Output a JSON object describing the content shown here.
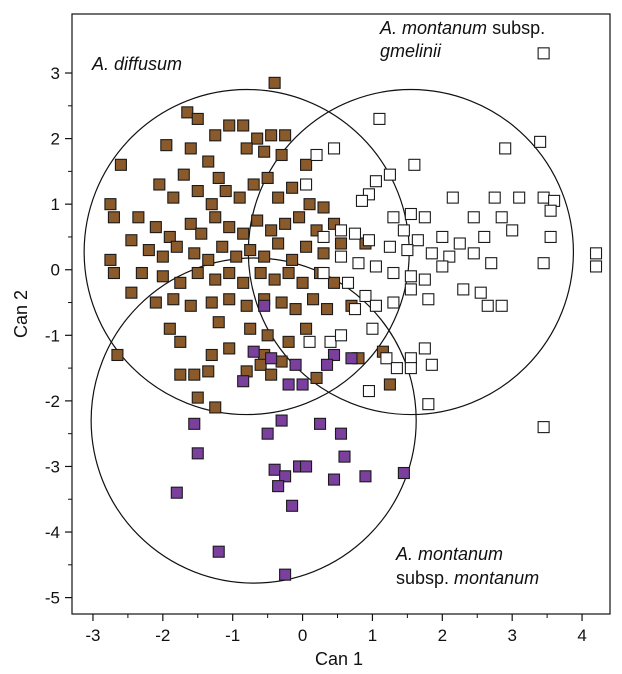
{
  "chart_data": {
    "type": "scatter",
    "title": "",
    "xlabel": "Can 1",
    "ylabel": "Can 2",
    "xlim": [
      -3.3,
      4.4
    ],
    "ylim": [
      -5.25,
      3.9
    ],
    "xticks": [
      -3,
      -2,
      -1,
      0,
      1,
      2,
      3,
      4
    ],
    "yticks": [
      -5,
      -4,
      -3,
      -2,
      -1,
      0,
      1,
      2,
      3
    ],
    "grid": false,
    "legend": "none",
    "group_labels": [
      {
        "italic": "A. diffusum",
        "plain": ""
      },
      {
        "italic": "A. montanum",
        "plain": " subsp."
      },
      {
        "italic": "gmelinii",
        "plain": ""
      },
      {
        "italic": "A. montanum",
        "plain": ""
      },
      {
        "italic": "montanum",
        "plain": "subsp. "
      }
    ],
    "circles": [
      {
        "group": "A. diffusum",
        "cx": -0.8,
        "cy": 0.27,
        "r": 2.4
      },
      {
        "group": "A. montanum subsp. gmelinii",
        "cx": 1.55,
        "cy": 0.27,
        "r": 2.4
      },
      {
        "group": "A. montanum subsp. montanum",
        "cx": -0.7,
        "cy": -2.3,
        "r": 2.4
      }
    ],
    "series": [
      {
        "group": "A. diffusum",
        "color": "#8b5a2b",
        "points": [
          [
            -0.4,
            2.85
          ],
          [
            -1.65,
            2.4
          ],
          [
            -1.5,
            2.3
          ],
          [
            -1.25,
            2.05
          ],
          [
            -1.05,
            2.2
          ],
          [
            -0.85,
            2.2
          ],
          [
            -0.65,
            2.0
          ],
          [
            -0.45,
            2.05
          ],
          [
            -0.25,
            2.05
          ],
          [
            0.05,
            1.6
          ],
          [
            -1.95,
            1.9
          ],
          [
            -1.6,
            1.85
          ],
          [
            -0.8,
            1.85
          ],
          [
            -0.55,
            1.8
          ],
          [
            -0.3,
            1.75
          ],
          [
            -1.35,
            1.65
          ],
          [
            -1.7,
            1.45
          ],
          [
            -1.2,
            1.4
          ],
          [
            -2.6,
            1.6
          ],
          [
            -2.05,
            1.3
          ],
          [
            -1.85,
            1.1
          ],
          [
            -1.5,
            1.2
          ],
          [
            -1.3,
            1.0
          ],
          [
            -1.1,
            1.2
          ],
          [
            -0.9,
            1.1
          ],
          [
            -0.7,
            1.3
          ],
          [
            -0.5,
            1.4
          ],
          [
            -0.35,
            1.1
          ],
          [
            -0.15,
            1.25
          ],
          [
            0.1,
            1.0
          ],
          [
            0.3,
            0.95
          ],
          [
            -2.75,
            1.0
          ],
          [
            -2.7,
            0.8
          ],
          [
            -2.35,
            0.8
          ],
          [
            -2.1,
            0.65
          ],
          [
            -1.9,
            0.5
          ],
          [
            -1.6,
            0.7
          ],
          [
            -1.45,
            0.55
          ],
          [
            -1.25,
            0.8
          ],
          [
            -1.05,
            0.65
          ],
          [
            -0.85,
            0.55
          ],
          [
            -0.65,
            0.75
          ],
          [
            -0.45,
            0.6
          ],
          [
            -0.25,
            0.7
          ],
          [
            -0.05,
            0.8
          ],
          [
            0.2,
            0.6
          ],
          [
            0.45,
            0.7
          ],
          [
            0.55,
            0.4
          ],
          [
            -2.45,
            0.45
          ],
          [
            -2.2,
            0.3
          ],
          [
            -2.0,
            0.2
          ],
          [
            -1.8,
            0.35
          ],
          [
            -1.55,
            0.25
          ],
          [
            -1.35,
            0.15
          ],
          [
            -1.15,
            0.35
          ],
          [
            -0.95,
            0.2
          ],
          [
            -0.75,
            0.3
          ],
          [
            -0.55,
            0.2
          ],
          [
            -0.35,
            0.4
          ],
          [
            -0.15,
            0.15
          ],
          [
            0.05,
            0.35
          ],
          [
            0.3,
            0.25
          ],
          [
            -2.75,
            0.15
          ],
          [
            -2.7,
            -0.05
          ],
          [
            -2.3,
            -0.05
          ],
          [
            -2.0,
            -0.1
          ],
          [
            -1.75,
            -0.2
          ],
          [
            -1.5,
            -0.05
          ],
          [
            -1.25,
            -0.15
          ],
          [
            -1.05,
            -0.05
          ],
          [
            -0.85,
            -0.2
          ],
          [
            -0.6,
            -0.05
          ],
          [
            -0.4,
            -0.15
          ],
          [
            -0.2,
            -0.05
          ],
          [
            0.0,
            -0.2
          ],
          [
            0.25,
            -0.05
          ],
          [
            0.45,
            -0.2
          ],
          [
            -2.45,
            -0.35
          ],
          [
            -2.1,
            -0.5
          ],
          [
            -1.85,
            -0.45
          ],
          [
            -1.6,
            -0.55
          ],
          [
            -1.3,
            -0.5
          ],
          [
            -1.05,
            -0.45
          ],
          [
            -0.8,
            -0.55
          ],
          [
            -0.55,
            -0.45
          ],
          [
            -0.3,
            -0.5
          ],
          [
            -0.1,
            -0.6
          ],
          [
            0.15,
            -0.45
          ],
          [
            0.35,
            -0.6
          ],
          [
            -1.9,
            -0.9
          ],
          [
            -1.75,
            -1.1
          ],
          [
            -1.2,
            -0.8
          ],
          [
            -0.75,
            -0.9
          ],
          [
            -0.5,
            -1.0
          ],
          [
            -0.2,
            -1.1
          ],
          [
            0.05,
            -0.9
          ],
          [
            -2.65,
            -1.3
          ],
          [
            -1.3,
            -1.3
          ],
          [
            -1.05,
            -1.2
          ],
          [
            -0.55,
            -1.3
          ],
          [
            -0.3,
            -1.4
          ],
          [
            -1.75,
            -1.6
          ],
          [
            -1.55,
            -1.6
          ],
          [
            -1.35,
            -1.55
          ],
          [
            -0.8,
            -1.55
          ],
          [
            -0.6,
            -1.45
          ],
          [
            0.2,
            -1.65
          ],
          [
            -1.5,
            -1.95
          ],
          [
            -1.25,
            -2.1
          ],
          [
            0.8,
            -1.35
          ],
          [
            1.15,
            -1.25
          ],
          [
            1.25,
            -1.75
          ],
          [
            0.7,
            -0.55
          ],
          [
            0.9,
            0.4
          ],
          [
            -0.45,
            -1.6
          ]
        ]
      },
      {
        "group": "A. montanum subsp. gmelinii",
        "color": "#ffffff",
        "points": [
          [
            3.45,
            3.3
          ],
          [
            1.1,
            2.3
          ],
          [
            0.45,
            1.85
          ],
          [
            0.2,
            1.75
          ],
          [
            3.4,
            1.95
          ],
          [
            2.9,
            1.85
          ],
          [
            0.05,
            1.3
          ],
          [
            1.6,
            1.6
          ],
          [
            1.25,
            1.45
          ],
          [
            0.95,
            1.15
          ],
          [
            1.05,
            1.35
          ],
          [
            0.85,
            1.05
          ],
          [
            2.15,
            1.1
          ],
          [
            2.75,
            1.1
          ],
          [
            3.1,
            1.1
          ],
          [
            3.45,
            1.1
          ],
          [
            3.6,
            1.05
          ],
          [
            1.3,
            0.8
          ],
          [
            1.55,
            0.85
          ],
          [
            1.75,
            0.8
          ],
          [
            2.45,
            0.8
          ],
          [
            2.85,
            0.8
          ],
          [
            3.55,
            0.9
          ],
          [
            3.55,
            0.5
          ],
          [
            1.45,
            0.6
          ],
          [
            1.65,
            0.45
          ],
          [
            2.0,
            0.5
          ],
          [
            2.25,
            0.4
          ],
          [
            2.6,
            0.5
          ],
          [
            3.0,
            0.6
          ],
          [
            0.55,
            0.6
          ],
          [
            0.75,
            0.55
          ],
          [
            0.95,
            0.45
          ],
          [
            1.25,
            0.35
          ],
          [
            1.5,
            0.3
          ],
          [
            1.85,
            0.25
          ],
          [
            2.1,
            0.2
          ],
          [
            2.45,
            0.25
          ],
          [
            2.7,
            0.1
          ],
          [
            3.45,
            0.1
          ],
          [
            4.2,
            0.25
          ],
          [
            4.2,
            0.05
          ],
          [
            0.3,
            0.5
          ],
          [
            0.55,
            0.2
          ],
          [
            0.8,
            0.1
          ],
          [
            1.05,
            0.05
          ],
          [
            1.3,
            -0.05
          ],
          [
            1.55,
            -0.1
          ],
          [
            1.75,
            -0.15
          ],
          [
            2.0,
            0.05
          ],
          [
            0.3,
            -0.05
          ],
          [
            0.65,
            -0.2
          ],
          [
            0.9,
            -0.4
          ],
          [
            1.05,
            -0.55
          ],
          [
            1.3,
            -0.5
          ],
          [
            1.55,
            -0.3
          ],
          [
            1.8,
            -0.45
          ],
          [
            2.3,
            -0.3
          ],
          [
            2.55,
            -0.35
          ],
          [
            2.65,
            -0.55
          ],
          [
            2.85,
            -0.55
          ],
          [
            0.75,
            -0.6
          ],
          [
            1.0,
            -0.9
          ],
          [
            0.4,
            -1.1
          ],
          [
            0.1,
            -1.1
          ],
          [
            0.55,
            -1.0
          ],
          [
            1.2,
            -1.35
          ],
          [
            1.55,
            -1.35
          ],
          [
            1.75,
            -1.2
          ],
          [
            1.85,
            -1.45
          ],
          [
            1.55,
            -1.5
          ],
          [
            1.35,
            -1.5
          ],
          [
            0.95,
            -1.85
          ],
          [
            1.8,
            -2.05
          ],
          [
            3.45,
            -2.4
          ]
        ]
      },
      {
        "group": "A. montanum subsp. montanum",
        "color": "#7b3f9e",
        "points": [
          [
            -0.55,
            -0.55
          ],
          [
            -0.7,
            -1.25
          ],
          [
            -0.45,
            -1.35
          ],
          [
            -0.85,
            -1.7
          ],
          [
            -0.2,
            -1.75
          ],
          [
            0.45,
            -1.3
          ],
          [
            0.7,
            -1.35
          ],
          [
            -0.1,
            -1.45
          ],
          [
            0.35,
            -1.45
          ],
          [
            0.0,
            -1.75
          ],
          [
            -1.55,
            -2.35
          ],
          [
            -0.3,
            -2.3
          ],
          [
            -0.5,
            -2.5
          ],
          [
            0.25,
            -2.35
          ],
          [
            0.55,
            -2.5
          ],
          [
            -1.5,
            -2.8
          ],
          [
            0.6,
            -2.85
          ],
          [
            -0.4,
            -3.05
          ],
          [
            -0.05,
            -3.0
          ],
          [
            0.05,
            -3.0
          ],
          [
            -0.25,
            -3.15
          ],
          [
            -0.35,
            -3.3
          ],
          [
            0.45,
            -3.2
          ],
          [
            0.9,
            -3.15
          ],
          [
            1.45,
            -3.1
          ],
          [
            -1.8,
            -3.4
          ],
          [
            -0.15,
            -3.6
          ],
          [
            -1.2,
            -4.3
          ],
          [
            -0.25,
            -4.65
          ]
        ]
      }
    ]
  }
}
